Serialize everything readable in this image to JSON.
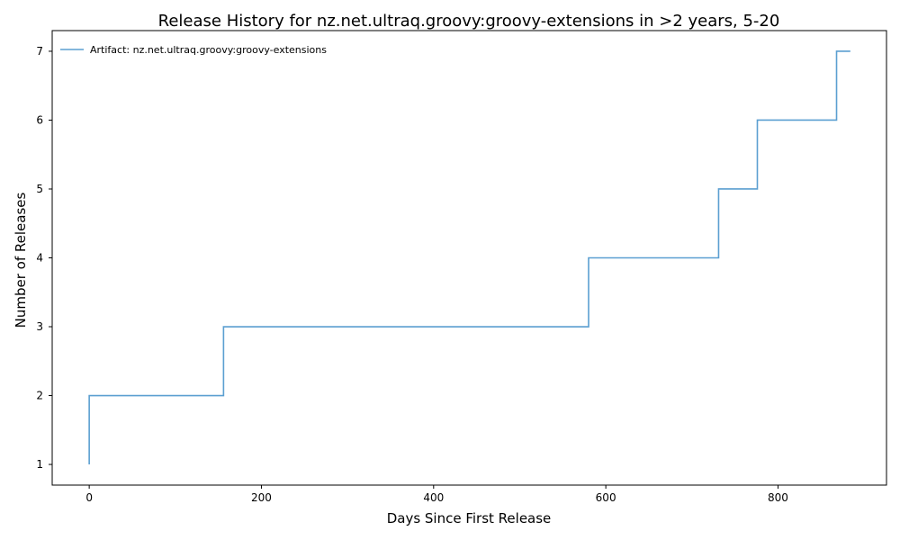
{
  "chart_data": {
    "type": "line",
    "drawstyle": "steps-post",
    "title": "Release History for nz.net.ultraq.groovy:groovy-extensions in >2 years, 5-20",
    "xlabel": "Days Since First Release",
    "ylabel": "Number of Releases",
    "xlim": [
      -43,
      926
    ],
    "ylim": [
      0.7,
      7.3
    ],
    "xticks": [
      0,
      200,
      400,
      600,
      800
    ],
    "yticks": [
      1,
      2,
      3,
      4,
      5,
      6,
      7
    ],
    "grid": false,
    "legend_position": "top-left",
    "series": [
      {
        "name": "Artifact: nz.net.ultraq.groovy:groovy-extensions",
        "color": "#5b9fd1",
        "x": [
          0,
          0,
          156,
          580,
          731,
          776,
          868,
          884
        ],
        "y": [
          1,
          2,
          3,
          4,
          5,
          6,
          7,
          7
        ]
      }
    ]
  }
}
